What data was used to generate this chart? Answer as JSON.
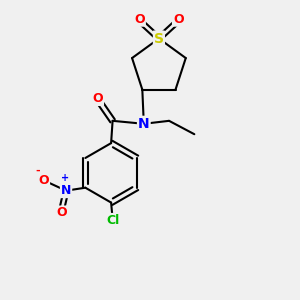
{
  "bg_color": "#f0f0f0",
  "bond_color": "#000000",
  "bond_width": 1.5,
  "atom_colors": {
    "O": "#ff0000",
    "N": "#0000ff",
    "S": "#cccc00",
    "Cl": "#00bb00",
    "C": "#000000"
  },
  "font_size": 9,
  "figsize": [
    3.0,
    3.0
  ],
  "dpi": 100,
  "xlim": [
    0,
    10
  ],
  "ylim": [
    0,
    10
  ]
}
